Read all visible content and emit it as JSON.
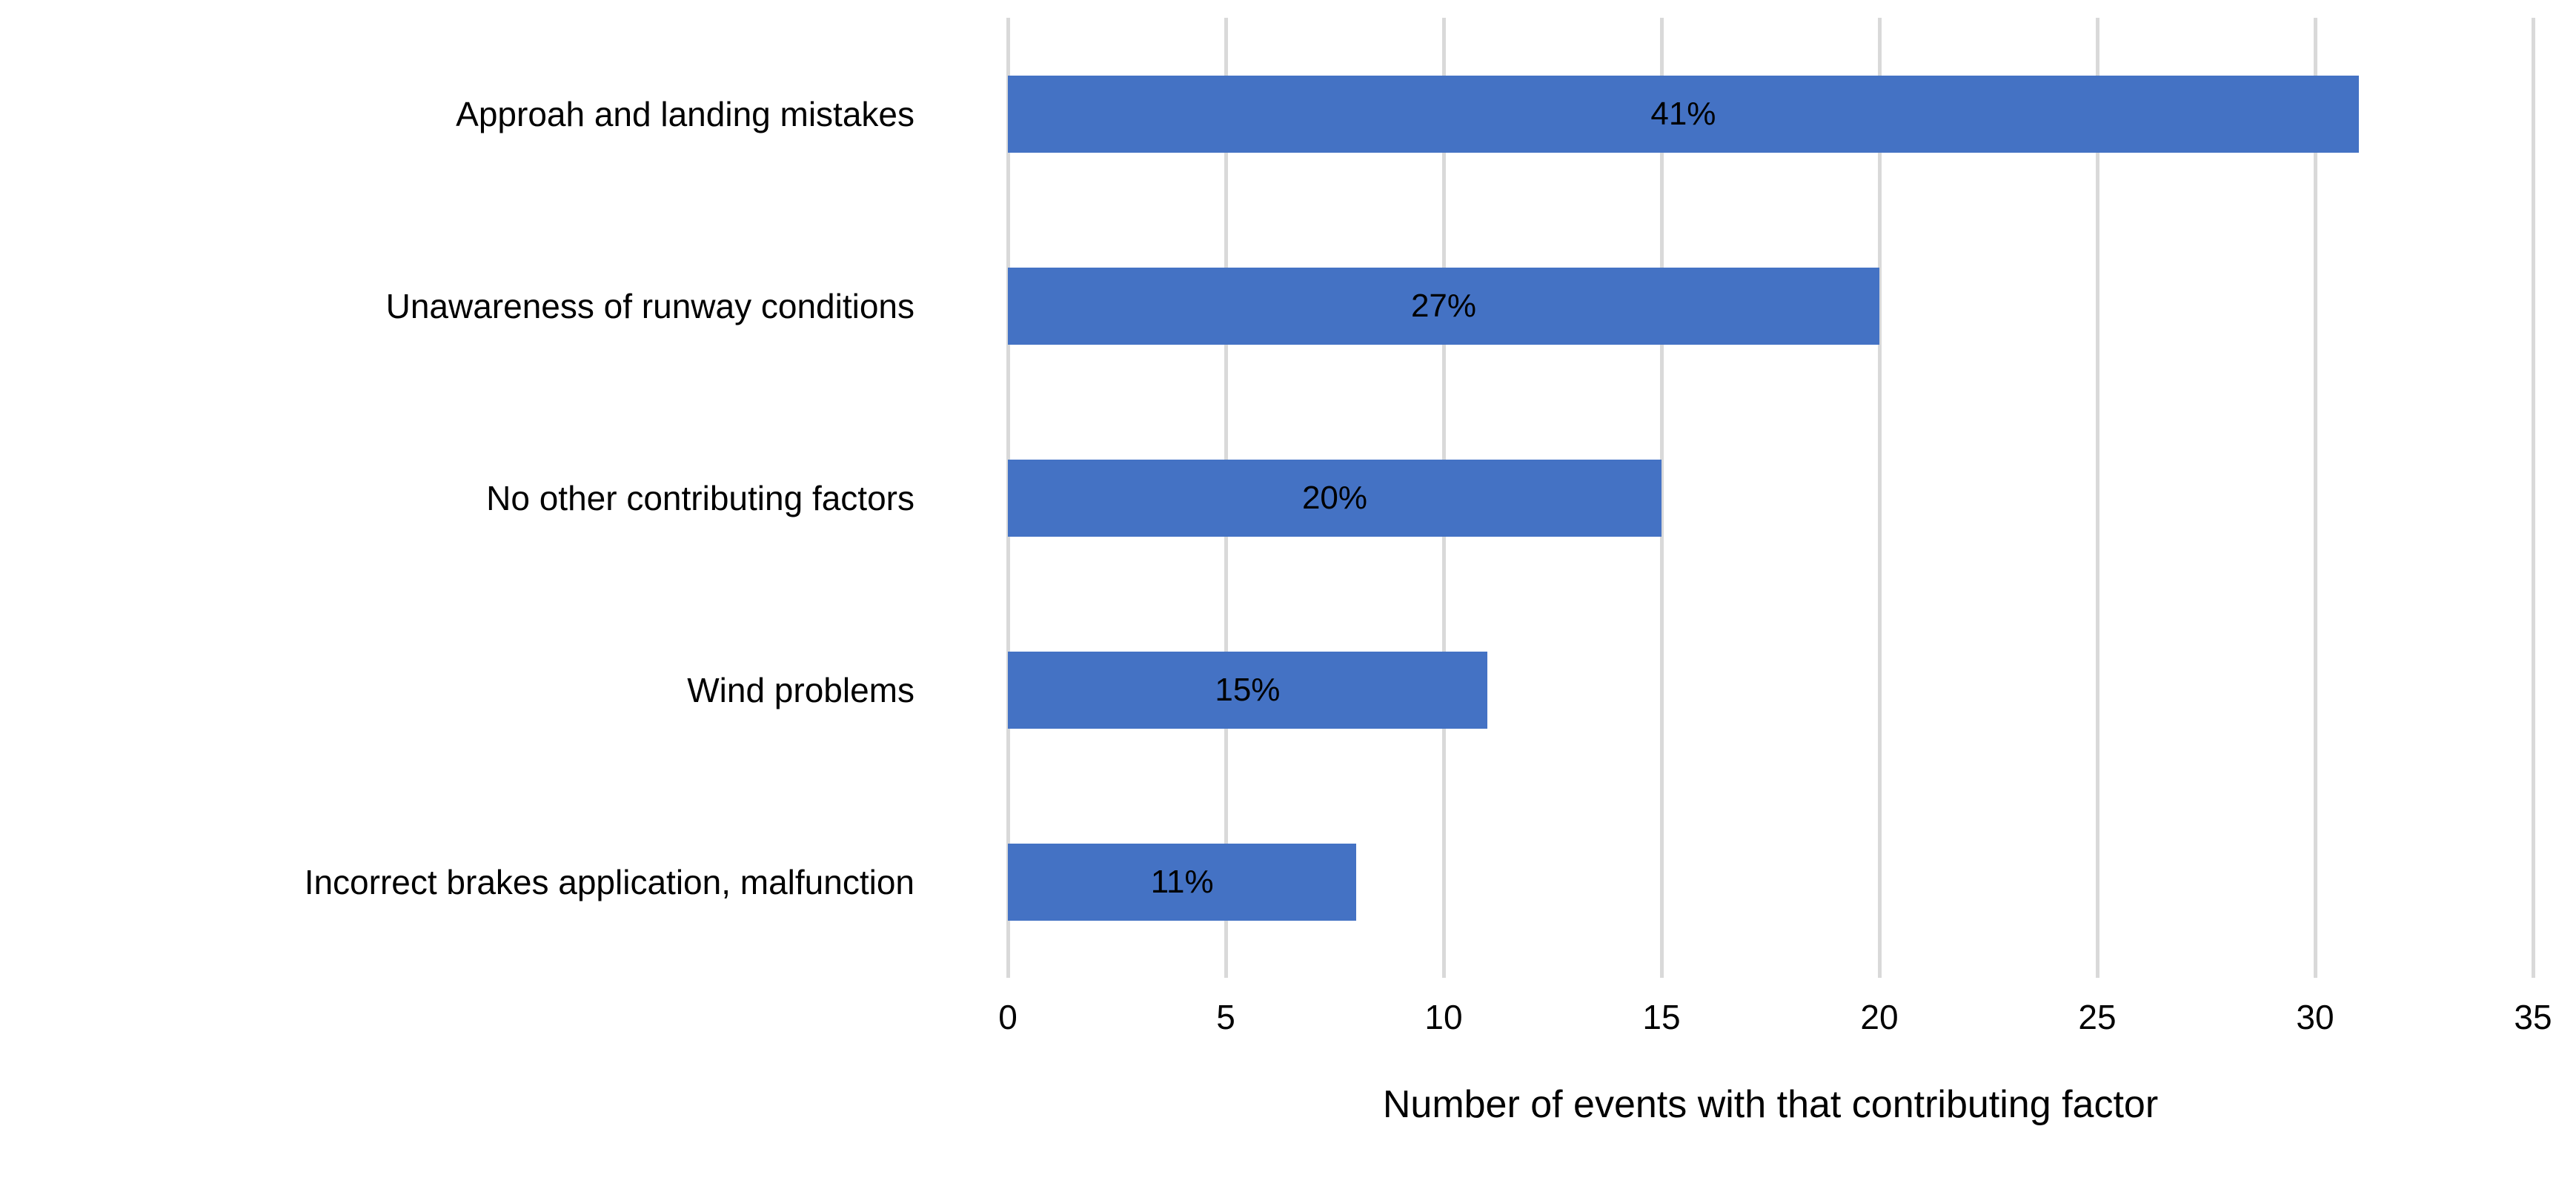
{
  "chart_data": {
    "type": "bar",
    "orientation": "horizontal",
    "title": "",
    "categories": [
      "Approah and landing mistakes",
      "Unawareness of runway conditions",
      "No other contributing factors",
      "Wind problems",
      "Incorrect brakes application, malfunction"
    ],
    "values": [
      31,
      20,
      15,
      11,
      8
    ],
    "bar_labels": [
      "41%",
      "27%",
      "20%",
      "15%",
      "11%"
    ],
    "xlabel": "Number of events with that contributing factor",
    "ylabel": "",
    "x_ticks": [
      0,
      5,
      10,
      15,
      20,
      25,
      30,
      35
    ],
    "xlim": [
      0,
      35
    ],
    "grid": "vertical-gridlines-only",
    "legend": "none",
    "colors": {
      "bar": "#4472C4",
      "gridline": "#D9D9D9",
      "text": "#000000",
      "background": "#FFFFFF"
    }
  }
}
